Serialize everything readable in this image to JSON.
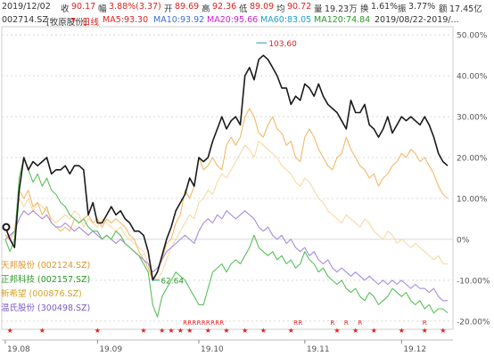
{
  "header": {
    "date": "2019/12/02",
    "close_label": "收",
    "close_value": "90.17",
    "change_label": "幅",
    "change_value": "3.88%(3.37)",
    "open_label": "开",
    "open_value": "89.69",
    "high_label": "高",
    "high_value": "92.36",
    "low_label": "低",
    "low_value": "89.09",
    "avg_label": "均",
    "avg_value": "90.72",
    "volume_label": "量",
    "volume_value": "19.23万",
    "turnover_label": "换",
    "turnover_value": "1.61%",
    "amplitude_label": "振",
    "amplitude_value": "3.77%",
    "amount_label": "额",
    "amount_value": "17.45亿"
  },
  "ma_bar": {
    "stock": "002714.SZ",
    "stock_name": "[牧原股份]",
    "flag": "▾",
    "period": "日线",
    "ma5": "MA5:93.30",
    "ma10": "MA10:93.92",
    "ma20": "MA20:95.66",
    "ma60": "MA60:83.05",
    "ma120": "MA120:74.84",
    "range": "2019/08/22-2019/..."
  },
  "colors": {
    "main": "#1a1a1a",
    "ma5": "#e02020",
    "ma10": "#3b6fd4",
    "ma20": "#d020d0",
    "ma60": "#20a0c8",
    "ma120": "#2a9a2a",
    "grid": "#d8d8d8",
    "axis_text": "#555555",
    "marker": "#e02020"
  },
  "chart_data": {
    "type": "line",
    "ylim": [
      -0.22,
      0.52
    ],
    "y_ticks": [
      "50.00%",
      "40.00%",
      "30.00%",
      "20.00%",
      "10.00%",
      "0%",
      "-10.00%",
      "-20.00%"
    ],
    "x_ticks": [
      "19.08",
      "19.09",
      "19.10",
      "19.11",
      "19.12"
    ],
    "annotations": {
      "max_label": "103.60",
      "min_label": "62.64"
    },
    "series": [
      {
        "name": "牧原股份",
        "color": "#1a1a1a",
        "values": [
          0.03,
          0.0,
          -0.02,
          0.12,
          0.2,
          0.17,
          0.19,
          0.18,
          0.19,
          0.2,
          0.16,
          0.17,
          0.17,
          0.18,
          0.16,
          0.18,
          0.18,
          0.17,
          0.06,
          0.09,
          0.04,
          0.04,
          0.06,
          0.08,
          0.06,
          0.07,
          0.05,
          0.04,
          0.02,
          0.02,
          0.01,
          -0.03,
          -0.1,
          -0.08,
          -0.04,
          0.0,
          0.03,
          0.07,
          0.09,
          0.11,
          0.15,
          0.13,
          0.2,
          0.19,
          0.2,
          0.24,
          0.27,
          0.3,
          0.27,
          0.29,
          0.3,
          0.28,
          0.4,
          0.42,
          0.39,
          0.44,
          0.45,
          0.44,
          0.42,
          0.4,
          0.37,
          0.37,
          0.33,
          0.35,
          0.34,
          0.38,
          0.37,
          0.35,
          0.38,
          0.35,
          0.33,
          0.32,
          0.31,
          0.29,
          0.27,
          0.34,
          0.31,
          0.31,
          0.33,
          0.28,
          0.27,
          0.25,
          0.27,
          0.3,
          0.26,
          0.28,
          0.3,
          0.29,
          0.3,
          0.29,
          0.28,
          0.3,
          0.28,
          0.25,
          0.21,
          0.19,
          0.18
        ]
      },
      {
        "name": "天邦股份 (002124.SZ)",
        "color": "#f2b96a",
        "values": [
          0.01,
          0.0,
          0.02,
          0.12,
          0.1,
          0.12,
          0.08,
          0.09,
          0.06,
          0.08,
          0.04,
          0.03,
          0.02,
          0.03,
          0.02,
          0.05,
          0.04,
          0.05,
          0.06,
          0.04,
          0.05,
          0.03,
          0.05,
          0.04,
          0.05,
          0.04,
          0.03,
          0.01,
          0.0,
          -0.03,
          -0.05,
          -0.07,
          -0.1,
          -0.08,
          -0.05,
          -0.01,
          0.0,
          0.04,
          0.06,
          0.12,
          0.1,
          0.13,
          0.2,
          0.17,
          0.18,
          0.2,
          0.18,
          0.17,
          0.23,
          0.25,
          0.23,
          0.25,
          0.3,
          0.32,
          0.3,
          0.26,
          0.25,
          0.28,
          0.3,
          0.27,
          0.26,
          0.23,
          0.24,
          0.2,
          0.19,
          0.25,
          0.27,
          0.25,
          0.22,
          0.2,
          0.18,
          0.17,
          0.2,
          0.21,
          0.25,
          0.22,
          0.2,
          0.18,
          0.17,
          0.15,
          0.16,
          0.13,
          0.15,
          0.16,
          0.18,
          0.19,
          0.21,
          0.2,
          0.22,
          0.21,
          0.19,
          0.2,
          0.18,
          0.16,
          0.13,
          0.11,
          0.1
        ]
      },
      {
        "name": "正邦科技 (002157.SZ)",
        "color": "#5cbf5c",
        "values": [
          0.0,
          -0.03,
          0.0,
          0.15,
          0.2,
          0.17,
          0.14,
          0.16,
          0.13,
          0.15,
          0.12,
          0.11,
          0.09,
          0.08,
          0.06,
          0.05,
          0.04,
          0.05,
          0.03,
          0.02,
          0.02,
          0.0,
          0.01,
          0.0,
          0.02,
          0.01,
          -0.01,
          -0.02,
          -0.03,
          -0.04,
          -0.06,
          -0.08,
          -0.16,
          -0.19,
          -0.14,
          -0.12,
          -0.1,
          -0.08,
          -0.09,
          -0.1,
          -0.12,
          -0.14,
          -0.16,
          -0.16,
          -0.12,
          -0.08,
          -0.07,
          -0.06,
          -0.08,
          -0.06,
          -0.05,
          -0.06,
          -0.04,
          -0.02,
          0.01,
          -0.02,
          -0.03,
          -0.04,
          -0.03,
          -0.05,
          -0.04,
          -0.06,
          -0.05,
          -0.07,
          -0.06,
          -0.03,
          -0.05,
          -0.06,
          -0.08,
          -0.07,
          -0.09,
          -0.1,
          -0.11,
          -0.1,
          -0.12,
          -0.13,
          -0.12,
          -0.14,
          -0.15,
          -0.13,
          -0.14,
          -0.16,
          -0.15,
          -0.14,
          -0.12,
          -0.13,
          -0.14,
          -0.13,
          -0.15,
          -0.16,
          -0.15,
          -0.17,
          -0.16,
          -0.18,
          -0.17,
          -0.17,
          -0.18
        ]
      },
      {
        "name": "新希望 (000876.SZ)",
        "color": "#f7d9a4",
        "values": [
          0.01,
          0.01,
          0.02,
          0.1,
          0.08,
          0.1,
          0.07,
          0.09,
          0.08,
          0.07,
          0.05,
          0.04,
          0.05,
          0.06,
          0.05,
          0.07,
          0.06,
          0.03,
          0.05,
          0.04,
          0.03,
          0.05,
          0.04,
          0.03,
          0.02,
          0.03,
          0.01,
          0.0,
          -0.01,
          -0.02,
          -0.03,
          -0.06,
          -0.09,
          -0.1,
          -0.08,
          -0.05,
          -0.02,
          0.0,
          0.02,
          0.04,
          0.06,
          0.05,
          0.09,
          0.1,
          0.12,
          0.11,
          0.14,
          0.16,
          0.15,
          0.17,
          0.19,
          0.21,
          0.23,
          0.22,
          0.2,
          0.24,
          0.23,
          0.22,
          0.21,
          0.2,
          0.18,
          0.17,
          0.16,
          0.14,
          0.13,
          0.15,
          0.14,
          0.12,
          0.1,
          0.09,
          0.07,
          0.06,
          0.05,
          0.04,
          0.06,
          0.05,
          0.04,
          0.03,
          0.05,
          0.04,
          0.02,
          0.01,
          0.0,
          0.02,
          0.01,
          -0.01,
          0.0,
          -0.01,
          -0.02,
          -0.01,
          -0.02,
          -0.03,
          -0.04,
          -0.05,
          -0.04,
          -0.06,
          -0.06
        ]
      },
      {
        "name": "温氏股份 (300498.SZ)",
        "color": "#a58cdc",
        "values": [
          0.0,
          0.01,
          0.02,
          0.05,
          0.07,
          0.06,
          0.07,
          0.06,
          0.05,
          0.06,
          0.04,
          0.03,
          0.03,
          0.04,
          0.03,
          0.02,
          0.03,
          0.02,
          0.01,
          0.02,
          0.01,
          0.0,
          0.01,
          0.0,
          -0.01,
          0.0,
          -0.01,
          -0.02,
          -0.03,
          -0.04,
          -0.05,
          -0.06,
          -0.08,
          -0.07,
          -0.05,
          -0.03,
          -0.02,
          -0.01,
          0.0,
          0.01,
          0.0,
          -0.01,
          0.02,
          0.04,
          0.05,
          0.04,
          0.06,
          0.05,
          0.07,
          0.06,
          0.05,
          0.06,
          0.07,
          0.06,
          0.05,
          0.03,
          0.02,
          0.03,
          0.01,
          0.0,
          0.01,
          -0.01,
          0.0,
          -0.02,
          -0.03,
          -0.02,
          -0.04,
          -0.03,
          -0.05,
          -0.06,
          -0.05,
          -0.07,
          -0.08,
          -0.07,
          -0.08,
          -0.09,
          -0.08,
          -0.09,
          -0.1,
          -0.09,
          -0.1,
          -0.11,
          -0.1,
          -0.11,
          -0.1,
          -0.11,
          -0.1,
          -0.11,
          -0.12,
          -0.11,
          -0.12,
          -0.12,
          -0.13,
          -0.12,
          -0.14,
          -0.15,
          -0.15
        ]
      }
    ]
  },
  "legend": [
    {
      "label": "天邦股份 (002124.SZ)",
      "color": "#e0952a"
    },
    {
      "label": "正邦科技 (002157.SZ)",
      "color": "#2a9a2a"
    },
    {
      "label": "新希望 (000876.SZ)",
      "color": "#d7a12a"
    },
    {
      "label": "温氏股份 (300498.SZ)",
      "color": "#7b5cc4"
    }
  ]
}
